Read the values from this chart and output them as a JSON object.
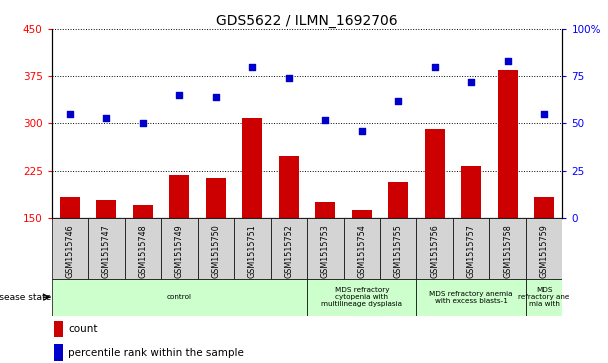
{
  "title": "GDS5622 / ILMN_1692706",
  "samples": [
    "GSM1515746",
    "GSM1515747",
    "GSM1515748",
    "GSM1515749",
    "GSM1515750",
    "GSM1515751",
    "GSM1515752",
    "GSM1515753",
    "GSM1515754",
    "GSM1515755",
    "GSM1515756",
    "GSM1515757",
    "GSM1515758",
    "GSM1515759"
  ],
  "bar_values": [
    183,
    178,
    170,
    218,
    213,
    308,
    248,
    175,
    162,
    207,
    291,
    232,
    385,
    183
  ],
  "dot_values_right": [
    55,
    53,
    50,
    65,
    64,
    80,
    74,
    52,
    46,
    62,
    80,
    72,
    83,
    55
  ],
  "ylim_left": [
    150,
    450
  ],
  "ylim_right": [
    0,
    100
  ],
  "yticks_left": [
    150,
    225,
    300,
    375,
    450
  ],
  "yticks_right": [
    0,
    25,
    50,
    75,
    100
  ],
  "bar_color": "#cc0000",
  "dot_color": "#0000cc",
  "groups": [
    {
      "label": "control",
      "start": 0,
      "end": 7
    },
    {
      "label": "MDS refractory\ncytopenia with\nmultilineage dysplasia",
      "start": 7,
      "end": 10
    },
    {
      "label": "MDS refractory anemia\nwith excess blasts-1",
      "start": 10,
      "end": 13
    },
    {
      "label": "MDS\nrefractory ane\nmia with",
      "start": 13,
      "end": 14
    }
  ],
  "group_color": "#ccffcc",
  "sample_box_color": "#d4d4d4",
  "title_fontsize": 10,
  "bar_width": 0.55,
  "dot_size": 20
}
